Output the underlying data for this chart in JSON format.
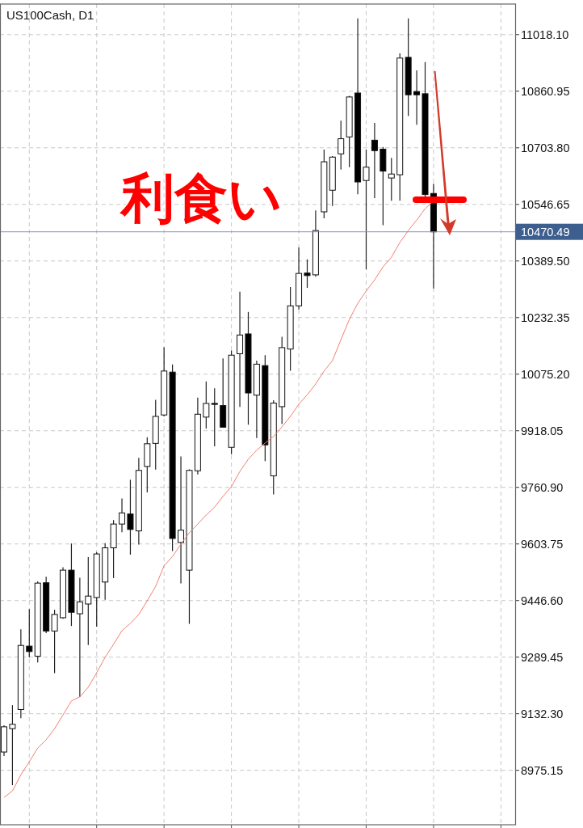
{
  "chart_data": {
    "type": "candlestick",
    "title": "US100Cash, D1",
    "categories": [
      null,
      null,
      null,
      null,
      null,
      null,
      null,
      null,
      null,
      null,
      null,
      null,
      null,
      null,
      null,
      null,
      null,
      null,
      null,
      null,
      null,
      null,
      null,
      null,
      null,
      null,
      null,
      null,
      null,
      null,
      null,
      null,
      null,
      null,
      null,
      null,
      null,
      null,
      null,
      null,
      null,
      null,
      null,
      null,
      null,
      null,
      null,
      null,
      null,
      null,
      null,
      null
    ],
    "ohlc": [
      [
        9026,
        9100,
        9015,
        9096
      ],
      [
        9091,
        9156,
        8934,
        9103
      ],
      [
        9144,
        9367,
        9120,
        9322
      ],
      [
        9320,
        9423,
        9289,
        9305
      ],
      [
        9292,
        9500,
        9275,
        9495
      ],
      [
        9496,
        9513,
        9356,
        9362
      ],
      [
        9362,
        9421,
        9245,
        9408
      ],
      [
        9399,
        9539,
        9396,
        9531
      ],
      [
        9531,
        9605,
        9376,
        9414
      ],
      [
        9410,
        9510,
        9179,
        9443
      ],
      [
        9437,
        9567,
        9323,
        9459
      ],
      [
        9455,
        9581,
        9374,
        9576
      ],
      [
        9498,
        9606,
        9449,
        9593
      ],
      [
        9593,
        9670,
        9509,
        9659
      ],
      [
        9659,
        9730,
        9636,
        9690
      ],
      [
        9687,
        9782,
        9574,
        9644
      ],
      [
        9640,
        9843,
        9602,
        9808
      ],
      [
        9819,
        9900,
        9747,
        9882
      ],
      [
        9883,
        10004,
        9810,
        9958
      ],
      [
        9962,
        10150,
        9958,
        10084
      ],
      [
        10081,
        10102,
        9584,
        9619
      ],
      [
        9608,
        9847,
        9494,
        9642
      ],
      [
        9531,
        9811,
        9382,
        9808
      ],
      [
        9807,
        10010,
        9797,
        9964
      ],
      [
        9956,
        10055,
        9924,
        9994
      ],
      [
        9994,
        10036,
        9875,
        9992
      ],
      [
        9988,
        10119,
        9928,
        9928
      ],
      [
        9872,
        10141,
        9853,
        10128
      ],
      [
        10132,
        10304,
        9984,
        10184
      ],
      [
        10187,
        10248,
        9935,
        10023
      ],
      [
        10017,
        10113,
        9898,
        10103
      ],
      [
        10099,
        10128,
        9834,
        9879
      ],
      [
        9793,
        10003,
        9741,
        9995
      ],
      [
        9985,
        10179,
        9937,
        10149
      ],
      [
        10145,
        10317,
        10085,
        10265
      ],
      [
        10265,
        10427,
        10255,
        10355
      ],
      [
        10356,
        10394,
        10315,
        10349
      ],
      [
        10351,
        10530,
        10346,
        10474
      ],
      [
        10526,
        10699,
        10508,
        10665
      ],
      [
        10586,
        10681,
        10542,
        10678
      ],
      [
        10687,
        10779,
        10643,
        10729
      ],
      [
        10734,
        10848,
        10650,
        10845
      ],
      [
        10856,
        11063,
        10575,
        10609
      ],
      [
        10613,
        10699,
        10366,
        10650
      ],
      [
        10725,
        10773,
        10564,
        10696
      ],
      [
        10700,
        10706,
        10489,
        10639
      ],
      [
        10620,
        10676,
        10557,
        10631
      ],
      [
        10629,
        10966,
        10557,
        10953
      ],
      [
        10955,
        11063,
        10792,
        10851
      ],
      [
        10860,
        10919,
        10768,
        10851
      ],
      [
        10854,
        10942,
        10562,
        10574
      ],
      [
        10577,
        10604,
        10313,
        10470.49
      ]
    ],
    "series": [
      {
        "type": "line",
        "color": "#f08070",
        "values": [
          8900,
          8918,
          8963,
          8999,
          9037,
          9060,
          9091,
          9129,
          9168,
          9179,
          9206,
          9246,
          9289,
          9325,
          9363,
          9383,
          9408,
          9446,
          9486,
          9543,
          9569,
          9603,
          9635,
          9659,
          9684,
          9706,
          9736,
          9763,
          9805,
          9839,
          9864,
          9884,
          9902,
          9929,
          9958,
          9992,
          10018,
          10048,
          10084,
          10113,
          10171,
          10227,
          10272,
          10306,
          10337,
          10373,
          10400,
          10441,
          10474,
          10503,
          10535,
          10556
        ]
      }
    ],
    "ylim": [
      8824,
      11103
    ],
    "yticks": [
      {
        "value": 8975.15,
        "label": "8975.15"
      },
      {
        "value": 9132.3,
        "label": "9132.30"
      },
      {
        "value": 9289.45,
        "label": "9289.45"
      },
      {
        "value": 9446.6,
        "label": "9446.60"
      },
      {
        "value": 9603.75,
        "label": "9603.75"
      },
      {
        "value": 9760.9,
        "label": "9760.90"
      },
      {
        "value": 9918.05,
        "label": "9918.05"
      },
      {
        "value": 10075.2,
        "label": "10075.20"
      },
      {
        "value": 10232.35,
        "label": "10232.35"
      },
      {
        "value": 10389.5,
        "label": "10389.50"
      },
      {
        "value": 10546.65,
        "label": "10546.65"
      },
      {
        "value": 10703.8,
        "label": "10703.80"
      },
      {
        "value": 10860.95,
        "label": "10860.95"
      },
      {
        "value": 11018.1,
        "label": "11018.10"
      }
    ],
    "ref_lines": [
      {
        "axis": "y",
        "value": 10470.49,
        "label": "10470.49",
        "color": "#7f95b3"
      }
    ],
    "annotations": [
      "利食い"
    ],
    "grid": true
  }
}
